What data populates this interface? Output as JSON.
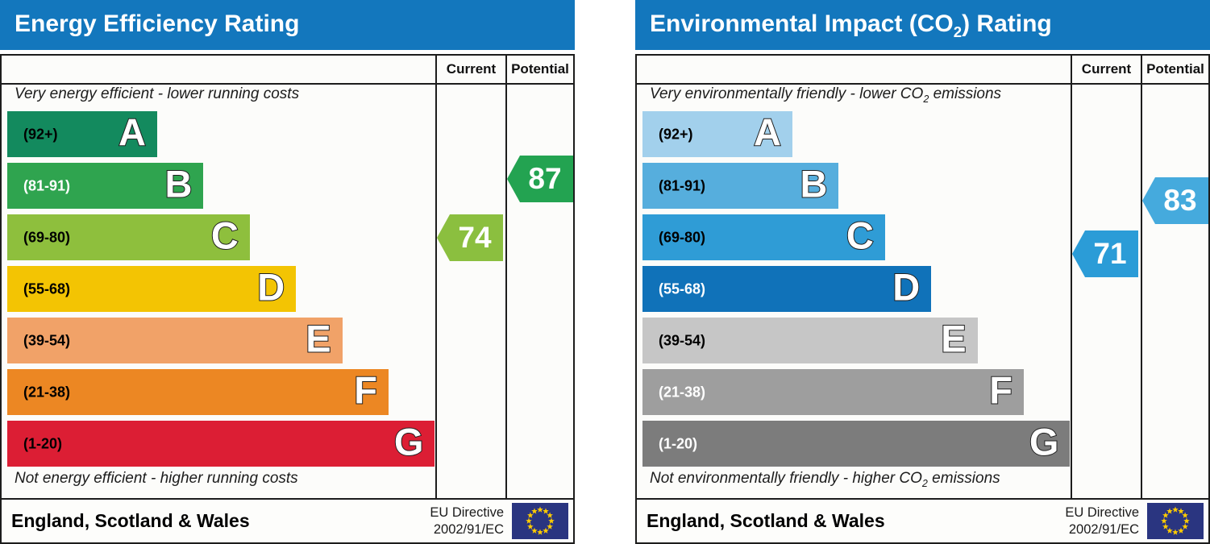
{
  "colors": {
    "header_bg": "#1377bd",
    "border": "#1c1c1c",
    "letter_outline": "#1f1f1f"
  },
  "eu_flag": {
    "bg": "#2a3580",
    "star": "#ffcc00"
  },
  "panels": [
    {
      "title": {
        "prefix": "Energy Efficiency Rating",
        "sub": "",
        "suffix": ""
      },
      "columns": {
        "current": "Current",
        "potential": "Potential"
      },
      "top_caption": {
        "prefix": "Very energy efficient - lower running costs",
        "sub": "",
        "suffix": ""
      },
      "bottom_caption": {
        "prefix": "Not energy efficient - higher running costs",
        "sub": "",
        "suffix": ""
      },
      "bands": [
        {
          "range": "(92+)",
          "letter": "A",
          "color": "#138a5e",
          "text_color": "#000000"
        },
        {
          "range": "(81-91)",
          "letter": "B",
          "color": "#2fa44f",
          "text_color": "#ffffff"
        },
        {
          "range": "(69-80)",
          "letter": "C",
          "color": "#8ebf3d",
          "text_color": "#000000"
        },
        {
          "range": "(55-68)",
          "letter": "D",
          "color": "#f3c403",
          "text_color": "#000000"
        },
        {
          "range": "(39-54)",
          "letter": "E",
          "color": "#f1a268",
          "text_color": "#000000"
        },
        {
          "range": "(21-38)",
          "letter": "F",
          "color": "#ec8723",
          "text_color": "#000000"
        },
        {
          "range": "(1-20)",
          "letter": "G",
          "color": "#dc1e34",
          "text_color": "#000000"
        }
      ],
      "current": {
        "value": "74",
        "color": "#8bbf3f"
      },
      "potential": {
        "value": "87",
        "color": "#23a351"
      },
      "footer": {
        "region": "England, Scotland & Wales",
        "directive_line1": "EU Directive",
        "directive_line2": "2002/91/EC"
      }
    },
    {
      "title": {
        "prefix": "Environmental Impact (CO",
        "sub": "2",
        "suffix": ") Rating"
      },
      "columns": {
        "current": "Current",
        "potential": "Potential"
      },
      "top_caption": {
        "prefix": "Very environmentally friendly - lower CO",
        "sub": "2",
        "suffix": " emissions"
      },
      "bottom_caption": {
        "prefix": "Not environmentally friendly - higher CO",
        "sub": "2",
        "suffix": " emissions"
      },
      "bands": [
        {
          "range": "(92+)",
          "letter": "A",
          "color": "#a2d0ec",
          "text_color": "#000000"
        },
        {
          "range": "(81-91)",
          "letter": "B",
          "color": "#56aedd",
          "text_color": "#000000"
        },
        {
          "range": "(69-80)",
          "letter": "C",
          "color": "#2f9cd6",
          "text_color": "#000000"
        },
        {
          "range": "(55-68)",
          "letter": "D",
          "color": "#1072b9",
          "text_color": "#ffffff"
        },
        {
          "range": "(39-54)",
          "letter": "E",
          "color": "#c6c6c6",
          "text_color": "#000000"
        },
        {
          "range": "(21-38)",
          "letter": "F",
          "color": "#9e9e9e",
          "text_color": "#ffffff"
        },
        {
          "range": "(1-20)",
          "letter": "G",
          "color": "#7c7c7c",
          "text_color": "#ffffff"
        }
      ],
      "current": {
        "value": "71",
        "color": "#2b9cd7"
      },
      "potential": {
        "value": "83",
        "color": "#45aadd"
      },
      "footer": {
        "region": "England, Scotland & Wales",
        "directive_line1": "EU Directive",
        "directive_line2": "2002/91/EC"
      }
    }
  ],
  "chart_data": [
    {
      "type": "bar",
      "title": "Energy Efficiency Rating",
      "categories": [
        "A (92+)",
        "B (81-91)",
        "C (69-80)",
        "D (55-68)",
        "E (39-54)",
        "F (21-38)",
        "G (1-20)"
      ],
      "series": [
        {
          "name": "Current",
          "values": [
            74
          ],
          "band": "C"
        },
        {
          "name": "Potential",
          "values": [
            87
          ],
          "band": "B"
        }
      ],
      "annotations": [
        "Very energy efficient - lower running costs",
        "Not energy efficient - higher running costs",
        "England, Scotland & Wales",
        "EU Directive 2002/91/EC"
      ]
    },
    {
      "type": "bar",
      "title": "Environmental Impact (CO2) Rating",
      "categories": [
        "A (92+)",
        "B (81-91)",
        "C (69-80)",
        "D (55-68)",
        "E (39-54)",
        "F (21-38)",
        "G (1-20)"
      ],
      "series": [
        {
          "name": "Current",
          "values": [
            71
          ],
          "band": "C"
        },
        {
          "name": "Potential",
          "values": [
            83
          ],
          "band": "B"
        }
      ],
      "annotations": [
        "Very environmentally friendly - lower CO2 emissions",
        "Not environmentally friendly - higher CO2 emissions",
        "England, Scotland & Wales",
        "EU Directive 2002/91/EC"
      ]
    }
  ]
}
